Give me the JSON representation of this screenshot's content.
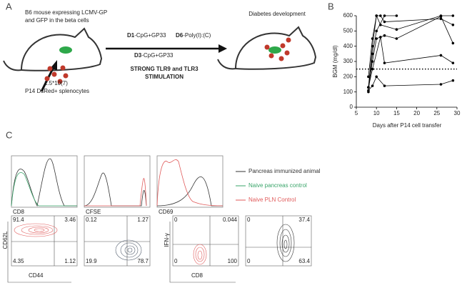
{
  "panels": {
    "a": "A",
    "b": "B",
    "c": "C"
  },
  "diagram": {
    "mouse_desc": [
      "B6 mouse expressing LCMV-GP",
      "and GFP in the beta cells"
    ],
    "steps": [
      {
        "day": "D1",
        "treatment": "-CpG+GP33"
      },
      {
        "day": "D6",
        "treatment": "-Poly(I):(C)"
      },
      {
        "day": "D3",
        "treatment": "-CpG+GP33"
      }
    ],
    "stimulation": [
      "STRONG TLR9 and TLR3",
      "STIMULATION"
    ],
    "outcome": "Diabetes development",
    "dose": "1.5*10(7)",
    "cells": "P14 DsRed+ splenocytes"
  },
  "chart_data": {
    "type": "line",
    "xlabel": "Days after P14 cell transfer",
    "ylabel": "BGM (mg/dl)",
    "xlim": [
      5,
      30
    ],
    "xticks": [
      5,
      10,
      15,
      20,
      25,
      30
    ],
    "ylim": [
      0,
      600
    ],
    "yticks": [
      0,
      100,
      200,
      300,
      400,
      500,
      600
    ],
    "threshold": 250,
    "color": "#000000",
    "series": [
      {
        "x": [
          8,
          9,
          10,
          12,
          26,
          29
        ],
        "values": [
          110,
          140,
          200,
          140,
          150,
          175
        ]
      },
      {
        "x": [
          8,
          9,
          11,
          12,
          26,
          29
        ],
        "values": [
          130,
          250,
          460,
          290,
          340,
          290
        ]
      },
      {
        "x": [
          8,
          9,
          10,
          12,
          15,
          26,
          29
        ],
        "values": [
          130,
          300,
          450,
          470,
          450,
          595,
          420
        ]
      },
      {
        "x": [
          8,
          9,
          10,
          11,
          15,
          26,
          29
        ],
        "values": [
          200,
          450,
          600,
          540,
          510,
          600,
          600
        ]
      },
      {
        "x": [
          8,
          9,
          10,
          11,
          12,
          26,
          29
        ],
        "values": [
          130,
          400,
          600,
          600,
          560,
          580,
          540
        ]
      },
      {
        "x": [
          8,
          9,
          10,
          12,
          15
        ],
        "values": [
          100,
          350,
          500,
          600,
          600
        ]
      }
    ]
  },
  "flow": {
    "histogram_axes": [
      "CD8",
      "CFSE",
      "CD69"
    ],
    "legend": [
      {
        "name": "Pancreas immunized animal",
        "color": "#333333"
      },
      {
        "name": "Naive pancreas control",
        "color": "#3aa56a"
      },
      {
        "name": "Naive PLN Control",
        "color": "#e05a5a"
      }
    ],
    "contour_axes": {
      "y1": "CD62L",
      "x1": "CD44",
      "y2": "IFN-γ",
      "x2": "CD8"
    },
    "quadrants": [
      [
        "91.4",
        "3.46",
        "4.35",
        "1.12"
      ],
      [
        "0.12",
        "1.27",
        "19.9",
        "78.7"
      ],
      [
        "0",
        "0.044",
        "0",
        "100"
      ],
      [
        "0",
        "37.4",
        "0",
        "63.4"
      ]
    ]
  }
}
